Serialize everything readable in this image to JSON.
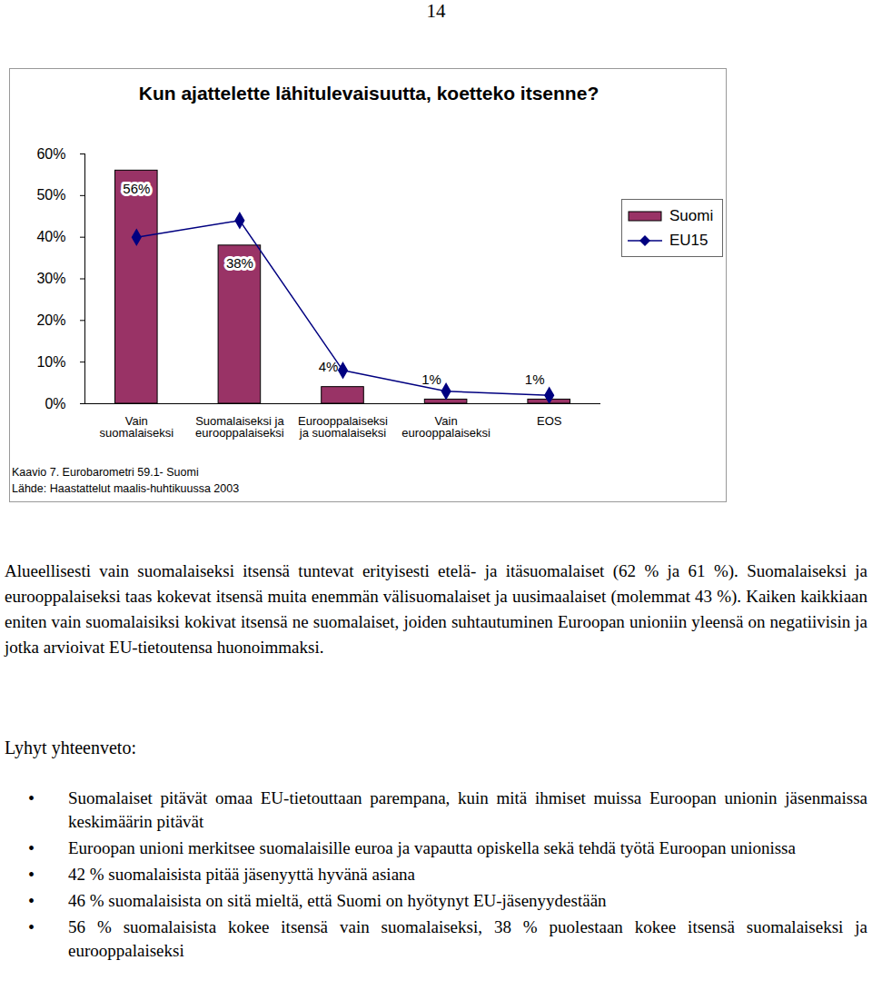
{
  "page_number": "14",
  "chart_data": {
    "type": "bar",
    "title": "Kun ajattelette lähitulevaisuutta, koetteko itsenne?",
    "categories": [
      "Vain suomalaiseksi",
      "Suomalaiseksi ja eurooppalaiseksi",
      "Eurooppalaiseksi ja suomalaiseksi",
      "Vain eurooppalaiseksi",
      "EOS"
    ],
    "series": [
      {
        "name": "Suomi",
        "type": "bar",
        "color": "#993366",
        "values": [
          56,
          38,
          4,
          1,
          1
        ],
        "value_labels": [
          "56%",
          "38%",
          "4%",
          "1%",
          "1%"
        ],
        "data_labels": true
      },
      {
        "name": "EU15",
        "type": "line",
        "color": "#000080",
        "marker": "diamond",
        "values": [
          40,
          44,
          8,
          3,
          2
        ]
      }
    ],
    "ylim": [
      0,
      60
    ],
    "yticks": [
      {
        "value": 0,
        "label": "0%"
      },
      {
        "value": 10,
        "label": "10%"
      },
      {
        "value": 20,
        "label": "20%"
      },
      {
        "value": 30,
        "label": "30%"
      },
      {
        "value": 40,
        "label": "40%"
      },
      {
        "value": 50,
        "label": "50%"
      },
      {
        "value": 60,
        "label": "60%"
      }
    ],
    "grid": false,
    "legend": "right",
    "annotations": [
      "Kaavio 7. Eurobarometri 59.1- Suomi",
      "Lähde: Haastattelut maalis-huhtikuussa 2003"
    ]
  },
  "body": {
    "paragraph": "Alueellisesti vain suomalaiseksi itsensä tuntevat erityisesti etelä- ja itäsuomalaiset (62 % ja 61 %). Suomalaiseksi ja eurooppalaiseksi taas kokevat itsensä muita enemmän välisuomalaiset ja uusimaalaiset (molemmat 43 %). Kaiken kaikkiaan eniten vain suomalaisiksi kokivat itsensä ne suomalaiset, joiden suhtautuminen Euroopan unioniin yleensä on negatiivisin ja jotka arvioivat EU-tietoutensa huonoimmaksi.",
    "summary": {
      "heading": "Lyhyt yhteenveto:",
      "items": [
        "Suomalaiset pitävät omaa EU-tietouttaan parempana, kuin mitä ihmiset muissa Euroopan unionin jäsenmaissa keskimäärin pitävät",
        "Euroopan unioni merkitsee suomalaisille euroa ja vapautta opiskella sekä tehdä työtä Euroopan unionissa",
        "42 % suomalaisista pitää jäsenyyttä hyvänä asiana",
        "46 % suomalaisista on sitä mieltä, että Suomi on hyötynyt EU-jäsenyydestään",
        "56 % suomalaisista kokee itsensä vain suomalaiseksi, 38 % puolestaan kokee itsensä suomalaiseksi ja eurooppalaiseksi"
      ]
    }
  }
}
